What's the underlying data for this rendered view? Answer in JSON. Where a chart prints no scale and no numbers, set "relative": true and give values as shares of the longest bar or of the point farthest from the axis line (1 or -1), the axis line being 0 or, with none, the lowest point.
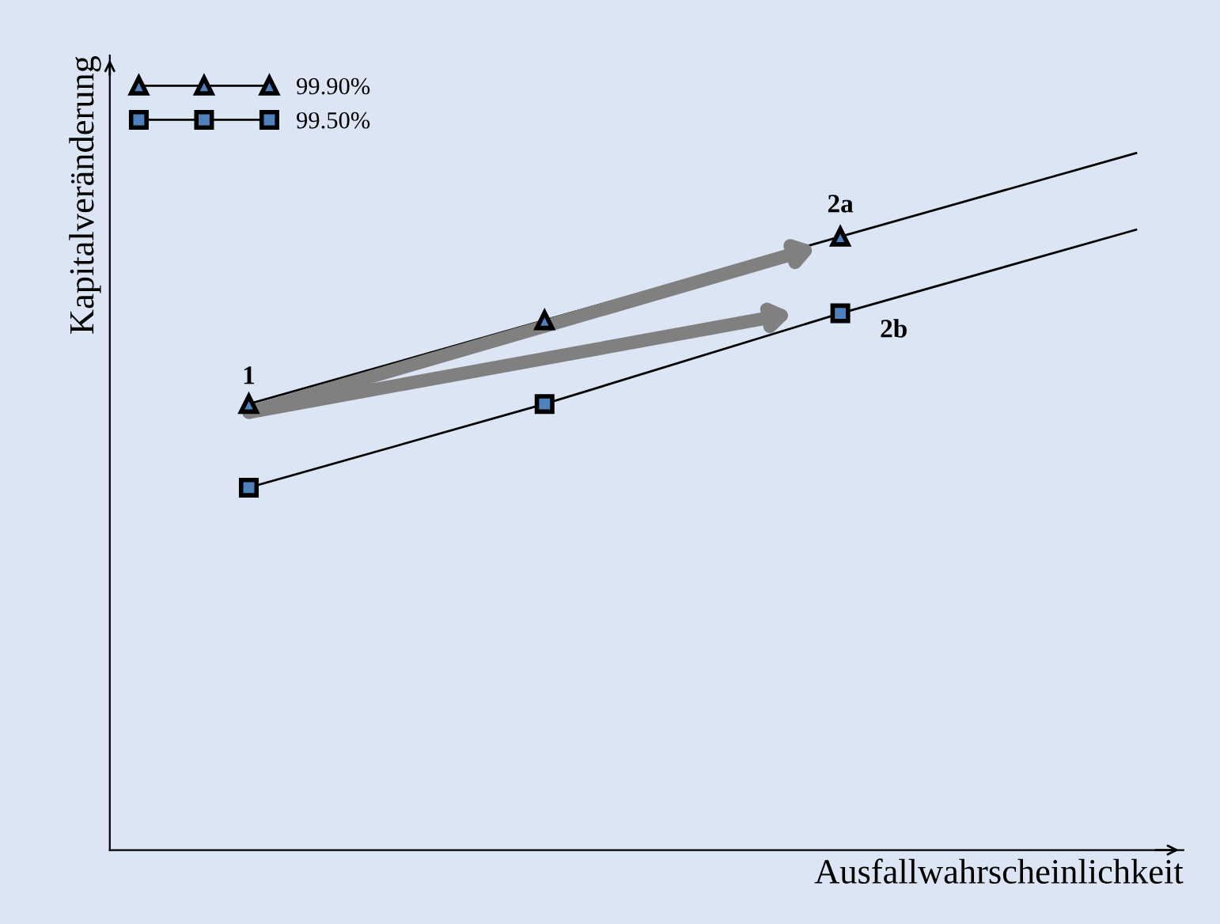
{
  "chart_data": {
    "type": "line",
    "relative": true,
    "xlabel": "Ausfallwahrscheinlichkeit",
    "ylabel": "Kapitalveränderung",
    "categories": [
      null,
      null,
      null,
      null
    ],
    "series": [
      {
        "name": "99.90%",
        "color": "#000000",
        "marker": "triangle",
        "values": [
          0.64,
          0.76,
          0.88,
          1.0
        ]
      },
      {
        "name": "99.50%",
        "color": "#000000",
        "marker": "square",
        "values": [
          0.52,
          0.64,
          0.77,
          0.89
        ]
      }
    ],
    "annotations": [
      "1",
      "2a",
      "2b"
    ],
    "legend": "top left"
  }
}
